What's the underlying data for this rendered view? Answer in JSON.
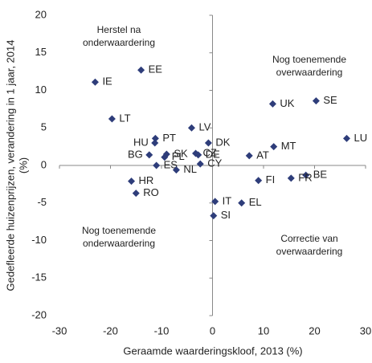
{
  "chart_data": {
    "type": "scatter",
    "xlabel": "Geraamde waarderingskloof, 2013 (%)",
    "ylabel": [
      "Gedefleerde huizenprijzen, verandering in 1 jaar, 2014",
      "(%)"
    ],
    "annotations": [
      [
        "Herstel na",
        "onderwaardering"
      ],
      [
        "Nog toenemende",
        "overwaardering"
      ],
      [
        "Nog toenemende",
        "onderwaardering"
      ],
      [
        "Correctie van",
        "overwaardering"
      ]
    ],
    "xlim": [
      -30,
      30
    ],
    "xticks": [
      -30,
      -20,
      -10,
      0,
      10,
      20,
      30
    ],
    "ylim": [
      -20,
      20
    ],
    "yticks": [
      -20,
      -15,
      -10,
      -5,
      0,
      5,
      10,
      15,
      20
    ],
    "color": "#2e3d7a",
    "labels": [
      "EE",
      "IE",
      "LT",
      "PT",
      "HU",
      "LV",
      "CZ",
      "DK",
      "SK",
      "BG",
      "PL",
      "DE",
      "ES",
      "NL",
      "CY",
      "HR",
      "RO",
      "IT",
      "SI",
      "EL",
      "AT",
      "MT",
      "UK",
      "SE",
      "LU",
      "BE",
      "FR",
      "FI"
    ],
    "x": [
      -14.0,
      -23.0,
      -19.7,
      -11.2,
      -11.3,
      -4.1,
      -3.3,
      -0.8,
      -9.0,
      -12.4,
      -9.4,
      -2.8,
      -11.0,
      -7.1,
      -2.4,
      -15.9,
      -15.0,
      0.5,
      0.2,
      5.7,
      7.2,
      12.0,
      11.8,
      20.3,
      26.3,
      18.3,
      15.4,
      9.0
    ],
    "y": [
      12.7,
      11.1,
      6.2,
      3.6,
      3.0,
      5.0,
      1.6,
      3.0,
      1.5,
      1.4,
      1.1,
      1.4,
      0.0,
      -0.6,
      0.2,
      -2.1,
      -3.7,
      -4.8,
      -6.7,
      -5.0,
      1.3,
      2.5,
      8.2,
      8.6,
      3.6,
      -1.3,
      -1.7,
      -2.0
    ]
  }
}
